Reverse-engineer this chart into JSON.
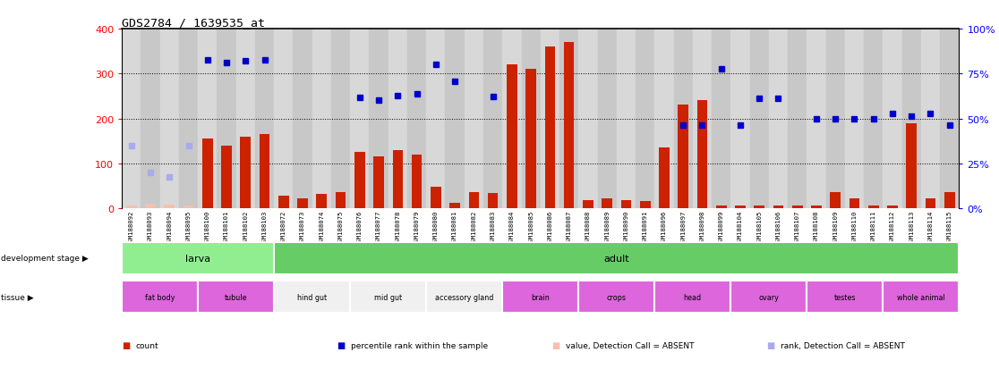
{
  "title": "GDS2784 / 1639535_at",
  "samples": [
    "GSM188092",
    "GSM188093",
    "GSM188094",
    "GSM188095",
    "GSM188100",
    "GSM188101",
    "GSM188102",
    "GSM188103",
    "GSM188072",
    "GSM188073",
    "GSM188074",
    "GSM188075",
    "GSM188076",
    "GSM188077",
    "GSM188078",
    "GSM188079",
    "GSM188080",
    "GSM188081",
    "GSM188082",
    "GSM188083",
    "GSM188084",
    "GSM188085",
    "GSM188086",
    "GSM188087",
    "GSM188088",
    "GSM188089",
    "GSM188090",
    "GSM188091",
    "GSM188096",
    "GSM188097",
    "GSM188098",
    "GSM188099",
    "GSM188104",
    "GSM188105",
    "GSM188106",
    "GSM188107",
    "GSM188108",
    "GSM188109",
    "GSM188110",
    "GSM188111",
    "GSM188112",
    "GSM188113",
    "GSM188114",
    "GSM188115"
  ],
  "counts": [
    5,
    10,
    8,
    5,
    155,
    140,
    160,
    165,
    28,
    22,
    32,
    35,
    125,
    115,
    130,
    120,
    47,
    12,
    35,
    33,
    320,
    310,
    360,
    370,
    18,
    22,
    17,
    15,
    135,
    230,
    240,
    5,
    5,
    5,
    5,
    5,
    5,
    35,
    22,
    5,
    5,
    190,
    22,
    35
  ],
  "is_absent": [
    true,
    true,
    true,
    true,
    false,
    false,
    false,
    false,
    false,
    false,
    false,
    false,
    false,
    false,
    false,
    false,
    false,
    false,
    false,
    false,
    false,
    false,
    false,
    false,
    false,
    false,
    false,
    false,
    false,
    false,
    false,
    false,
    false,
    false,
    false,
    false,
    false,
    false,
    false,
    false,
    false,
    false,
    false,
    false
  ],
  "percentile_ranks": [
    null,
    null,
    null,
    null,
    330,
    325,
    328,
    330,
    null,
    null,
    null,
    null,
    246,
    240,
    251,
    255,
    320,
    282,
    null,
    248,
    null,
    null,
    null,
    null,
    null,
    null,
    null,
    null,
    null,
    185,
    185,
    310,
    185,
    245,
    245,
    null,
    200,
    200,
    200,
    200,
    210,
    205,
    210,
    185
  ],
  "absent_ranks": [
    140,
    80,
    70,
    140,
    null,
    null,
    null,
    null,
    null,
    null,
    null,
    null,
    null,
    null,
    null,
    null,
    null,
    null,
    null,
    null,
    null,
    null,
    null,
    null,
    null,
    null,
    null,
    null,
    null,
    null,
    null,
    null,
    null,
    null,
    null,
    null,
    null,
    null,
    null,
    null,
    null,
    null,
    null,
    null
  ],
  "dev_stages": [
    {
      "label": "larva",
      "start": 0,
      "end": 8
    },
    {
      "label": "adult",
      "start": 8,
      "end": 44
    }
  ],
  "tissues": [
    {
      "label": "fat body",
      "start": 0,
      "end": 4,
      "purple": true
    },
    {
      "label": "tubule",
      "start": 4,
      "end": 8,
      "purple": true
    },
    {
      "label": "hind gut",
      "start": 8,
      "end": 12,
      "purple": false
    },
    {
      "label": "mid gut",
      "start": 12,
      "end": 16,
      "purple": false
    },
    {
      "label": "accessory gland",
      "start": 16,
      "end": 20,
      "purple": false
    },
    {
      "label": "brain",
      "start": 20,
      "end": 24,
      "purple": true
    },
    {
      "label": "crops",
      "start": 24,
      "end": 28,
      "purple": true
    },
    {
      "label": "head",
      "start": 28,
      "end": 32,
      "purple": true
    },
    {
      "label": "ovary",
      "start": 32,
      "end": 36,
      "purple": true
    },
    {
      "label": "testes",
      "start": 36,
      "end": 40,
      "purple": true
    },
    {
      "label": "whole animal",
      "start": 40,
      "end": 44,
      "purple": true
    }
  ],
  "bar_color": "#cc2200",
  "absent_bar_color": "#f5c0b0",
  "dot_color": "#0000cc",
  "absent_dot_color": "#aaaaee",
  "green_light": "#90ee90",
  "green_dark": "#66cc66",
  "purple_color": "#dd66dd",
  "white_tissue_color": "#f0f0f0",
  "bg_even": "#d8d8d8",
  "bg_odd": "#c8c8c8",
  "legend_items": [
    {
      "color": "#cc2200",
      "label": "count"
    },
    {
      "color": "#0000cc",
      "label": "percentile rank within the sample"
    },
    {
      "color": "#f5c0b0",
      "label": "value, Detection Call = ABSENT"
    },
    {
      "color": "#aaaaee",
      "label": "rank, Detection Call = ABSENT"
    }
  ]
}
